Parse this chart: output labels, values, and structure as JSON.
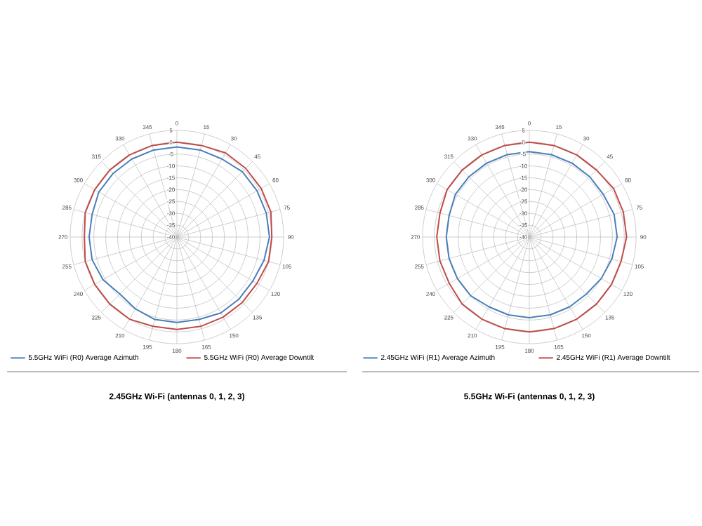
{
  "chart_data": [
    {
      "type": "radar",
      "title": "2.45GHz Wi-Fi (antennas 0, 1, 2, 3)",
      "categories": [
        "0",
        "15",
        "30",
        "45",
        "60",
        "75",
        "90",
        "105",
        "120",
        "135",
        "150",
        "165",
        "180",
        "195",
        "210",
        "225",
        "240",
        "255",
        "270",
        "285",
        "300",
        "315",
        "330",
        "345"
      ],
      "ylim": [
        -40,
        5
      ],
      "yticks": [
        5,
        0,
        -5,
        -10,
        -15,
        -20,
        -25,
        -30,
        -35,
        -40
      ],
      "grid": true,
      "legend": "bottom",
      "series": [
        {
          "name": "5.5GHz WiFi (R0) Average Azimuth",
          "color": "#4a7ebb",
          "values": [
            -2,
            -2,
            -2,
            -1,
            -1,
            -1,
            -1,
            -2,
            -3,
            -3,
            -3,
            -4,
            -4,
            -4,
            -5,
            -6,
            -4,
            -3,
            -3,
            -3,
            -2,
            -2,
            -2,
            -2
          ]
        },
        {
          "name": "5.5GHz WiFi (R0) Average Downtilt",
          "color": "#be4b48",
          "values": [
            0,
            0,
            1,
            1,
            1,
            1,
            0,
            0,
            -1,
            -1,
            -1,
            -1,
            -1,
            -1,
            0,
            0,
            0,
            0,
            -1,
            0,
            0,
            0,
            0,
            0
          ]
        }
      ]
    },
    {
      "type": "radar",
      "title": "5.5GHz Wi-Fi (antennas 0, 1, 2, 3)",
      "categories": [
        "0",
        "15",
        "30",
        "45",
        "60",
        "75",
        "90",
        "105",
        "120",
        "135",
        "150",
        "165",
        "180",
        "195",
        "210",
        "225",
        "240",
        "255",
        "270",
        "285",
        "300",
        "315",
        "330",
        "345"
      ],
      "ylim": [
        -40,
        5
      ],
      "yticks": [
        5,
        0,
        -5,
        -10,
        -15,
        -20,
        -25,
        -30,
        -35,
        -40
      ],
      "grid": true,
      "legend": "bottom",
      "series": [
        {
          "name": "2.45GHz WiFi (R1) Average Azimuth",
          "color": "#4a7ebb",
          "values": [
            -4,
            -4,
            -4,
            -4,
            -4,
            -3,
            -3,
            -4,
            -5,
            -6,
            -6,
            -6,
            -6,
            -6,
            -6,
            -5,
            -5,
            -5,
            -5,
            -5,
            -4,
            -4,
            -4,
            -4
          ]
        },
        {
          "name": "2.45GHz WiFi (R1) Average Downtilt",
          "color": "#be4b48",
          "values": [
            0,
            0,
            0,
            0,
            1,
            1,
            1,
            0,
            0,
            0,
            0,
            0,
            0,
            0,
            0,
            0,
            -1,
            -1,
            -1,
            -1,
            0,
            0,
            0,
            0
          ]
        }
      ]
    }
  ]
}
